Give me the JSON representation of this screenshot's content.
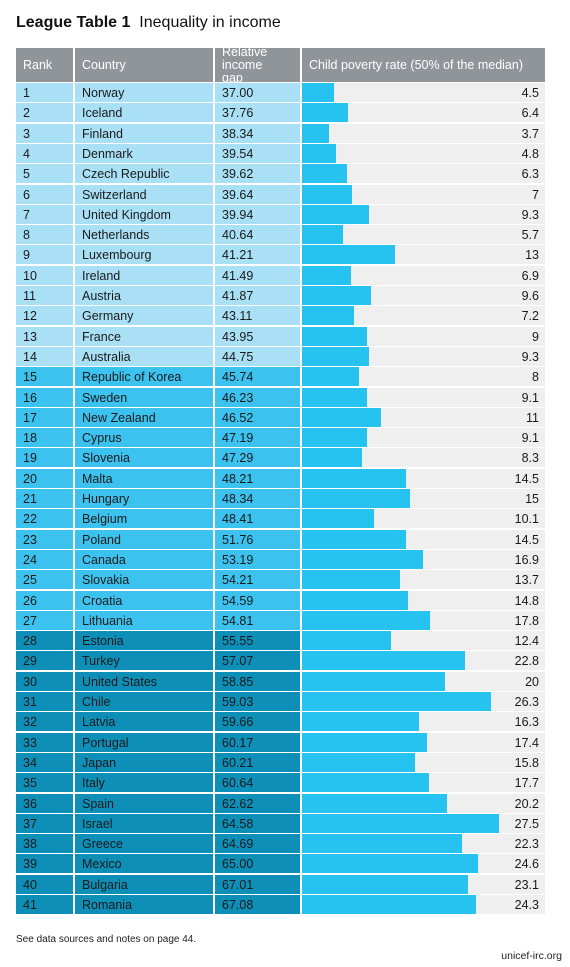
{
  "title_bold": "League Table 1",
  "title": "Inequality in income",
  "columns": [
    "Rank",
    "Country",
    "Relative income gap",
    "Child poverty rate (50% of the median)"
  ],
  "rows": [
    [
      1,
      "Norway",
      "37.00",
      4.5
    ],
    [
      2,
      "Iceland",
      "37.76",
      6.4
    ],
    [
      3,
      "Finland",
      "38.34",
      3.7
    ],
    [
      4,
      "Denmark",
      "39.54",
      4.8
    ],
    [
      5,
      "Czech Republic",
      "39.62",
      6.3
    ],
    [
      6,
      "Switzerland",
      "39.64",
      7
    ],
    [
      7,
      "United Kingdom",
      "39.94",
      9.3
    ],
    [
      8,
      "Netherlands",
      "40.64",
      5.7
    ],
    [
      9,
      "Luxembourg",
      "41.21",
      13
    ],
    [
      10,
      "Ireland",
      "41.49",
      6.9
    ],
    [
      11,
      "Austria",
      "41.87",
      9.6
    ],
    [
      12,
      "Germany",
      "43.11",
      7.2
    ],
    [
      13,
      "France",
      "43.95",
      9
    ],
    [
      14,
      "Australia",
      "44.75",
      9.3
    ],
    [
      15,
      "Republic of Korea",
      "45.74",
      8
    ],
    [
      16,
      "Sweden",
      "46.23",
      9.1
    ],
    [
      17,
      "New Zealand",
      "46.52",
      11
    ],
    [
      18,
      "Cyprus",
      "47.19",
      9.1
    ],
    [
      19,
      "Slovenia",
      "47.29",
      8.3
    ],
    [
      20,
      "Malta",
      "48.21",
      14.5
    ],
    [
      21,
      "Hungary",
      "48.34",
      15
    ],
    [
      22,
      "Belgium",
      "48.41",
      10.1
    ],
    [
      23,
      "Poland",
      "51.76",
      14.5
    ],
    [
      24,
      "Canada",
      "53.19",
      16.9
    ],
    [
      25,
      "Slovakia",
      "54.21",
      13.7
    ],
    [
      26,
      "Croatia",
      "54.59",
      14.8
    ],
    [
      27,
      "Lithuania",
      "54.81",
      17.8
    ],
    [
      28,
      "Estonia",
      "55.55",
      12.4
    ],
    [
      29,
      "Turkey",
      "57.07",
      22.8
    ],
    [
      30,
      "United States",
      "58.85",
      20
    ],
    [
      31,
      "Chile",
      "59.03",
      26.3
    ],
    [
      32,
      "Latvia",
      "59.66",
      16.3
    ],
    [
      33,
      "Portugal",
      "60.17",
      17.4
    ],
    [
      34,
      "Japan",
      "60.21",
      15.8
    ],
    [
      35,
      "Italy",
      "60.64",
      17.7
    ],
    [
      36,
      "Spain",
      "62.62",
      20.2
    ],
    [
      37,
      "Israel",
      "64.58",
      27.5
    ],
    [
      38,
      "Greece",
      "64.69",
      22.3
    ],
    [
      39,
      "Mexico",
      "65.00",
      24.6
    ],
    [
      40,
      "Bulgaria",
      "67.01",
      23.1
    ],
    [
      41,
      "Romania",
      "67.08",
      24.3
    ]
  ],
  "footnote": "See data sources and notes on page 44.",
  "source": "unicef-irc.org"
}
